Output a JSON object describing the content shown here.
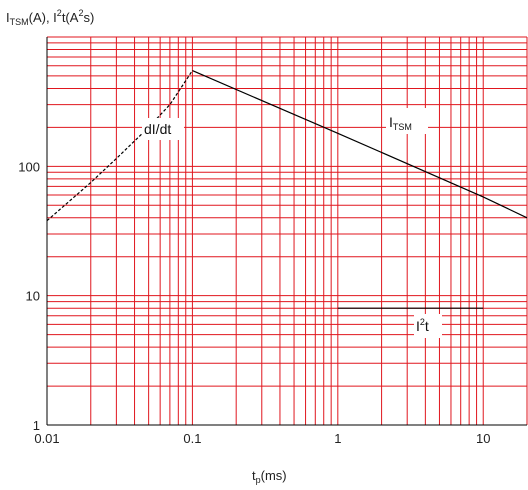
{
  "chart_data": {
    "type": "line",
    "title": "",
    "y_axis_label": {
      "main": "I",
      "sub": "TSM",
      "rest": "(A), I",
      "sup": "2",
      "rest2": "t(A",
      "sup2": "2",
      "end": "s)"
    },
    "x_axis_label": {
      "main": "t",
      "sub": "p",
      "end": "(ms)"
    },
    "x_scale": "log",
    "y_scale": "log",
    "xlim": [
      0.01,
      20
    ],
    "ylim": [
      1,
      1000
    ],
    "x_ticks": [
      {
        "value": 0.01,
        "label": "0.01"
      },
      {
        "value": 0.1,
        "label": "0.1"
      },
      {
        "value": 1,
        "label": "1"
      },
      {
        "value": 10,
        "label": "10"
      }
    ],
    "y_ticks": [
      {
        "value": 1,
        "label": "1"
      },
      {
        "value": 10,
        "label": "10"
      },
      {
        "value": 100,
        "label": "100"
      }
    ],
    "grid": true,
    "grid_color": "#e0161e",
    "series": [
      {
        "name": "dI/dt",
        "style": "dashed",
        "color": "#000000",
        "x": [
          0.01,
          0.02,
          0.03,
          0.05,
          0.07,
          0.1
        ],
        "y": [
          38,
          75,
          115,
          200,
          300,
          550
        ]
      },
      {
        "name": "ITSM",
        "style": "solid",
        "color": "#000000",
        "x": [
          0.1,
          1,
          10,
          20
        ],
        "y": [
          550,
          180,
          58,
          40
        ]
      },
      {
        "name": "I2t",
        "style": "solid",
        "color": "#000000",
        "x": [
          1,
          10
        ],
        "y": [
          8,
          8
        ]
      }
    ],
    "annotations": [
      {
        "id": "didt",
        "text": "dI/dt"
      },
      {
        "id": "itsm",
        "main": "I",
        "sub": "TSM"
      },
      {
        "id": "i2t",
        "main": "I",
        "sup": "2",
        "end": "t"
      }
    ]
  }
}
